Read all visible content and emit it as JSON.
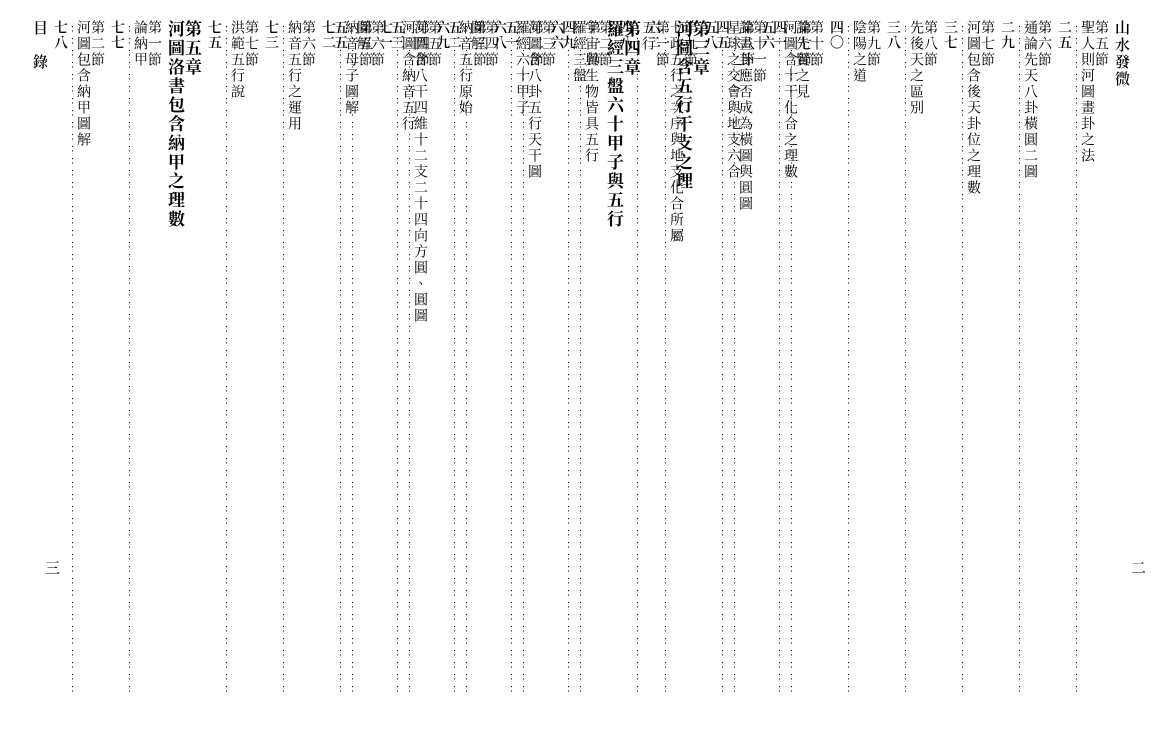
{
  "book_header_right": "山水發微",
  "book_header_left": "目　錄",
  "page_num_right": "二",
  "page_num_left": "三",
  "font": {
    "body_pt": 14,
    "chapter_pt": 17,
    "color": "#000000",
    "bg": "#ffffff"
  },
  "dot_glyph": "⋮",
  "right_page": [
    {
      "type": "header",
      "text": "山水發微"
    },
    {
      "type": "entry",
      "label": "第五節",
      "title": "聖人則河圖畫卦之法",
      "page": "二五"
    },
    {
      "type": "entry",
      "label": "第六節",
      "title": "通論先天八卦橫圓二圖",
      "page": "二九"
    },
    {
      "type": "entry",
      "label": "第七節",
      "title": "河圖包含後天卦位之理數",
      "page": "三七"
    },
    {
      "type": "entry",
      "label": "第八節",
      "title": "先後天之區別",
      "page": "三八"
    },
    {
      "type": "entry",
      "label": "第九節",
      "title": "陰陽之道",
      "page": "四〇"
    },
    {
      "type": "entry",
      "label": "第十節",
      "title": "論先賢之見",
      "page": "四一"
    },
    {
      "type": "entry",
      "label": "第十一節",
      "title": "論畫卦應否成為橫圖與圓圖",
      "page": "四五"
    },
    {
      "type": "chapter",
      "label": "第三章",
      "title": "河圖含五行干支之理"
    },
    {
      "type": "entry",
      "label": "第一節",
      "title": "五行",
      "page": "四八"
    },
    {
      "type": "entry",
      "label": "第二節",
      "title": "宇宙與生物皆具五行",
      "page": "四九"
    },
    {
      "type": "entry",
      "label": "第三節",
      "title": "河圖含八卦五行天干圖",
      "page": "五一"
    },
    {
      "type": "entry",
      "label": "第四節",
      "title": "圖解",
      "page": "五二"
    },
    {
      "type": "entry",
      "label": "第五節",
      "title": "河圖含八干四維十二支二十四向方圓、圓圖",
      "page": "五三"
    },
    {
      "type": "entry",
      "label": "第六節",
      "title": "圖解",
      "page": "五五"
    }
  ],
  "left_page": [
    {
      "type": "entry",
      "label": "第七節",
      "title": "河圖含十干化合之理數",
      "page": "五六"
    },
    {
      "type": "entry",
      "label": "第八節",
      "title": "星球之交會與地支六合",
      "page": "五八"
    },
    {
      "type": "entry",
      "label": "第九節",
      "title": "七政五行之次序與地支化合所屬",
      "page": "六二"
    },
    {
      "type": "chapter",
      "label": "第四章",
      "title": "羅經三盤六十甲子與五行"
    },
    {
      "type": "entry",
      "label": "第一節",
      "title": "羅經三盤",
      "page": "六六"
    },
    {
      "type": "entry",
      "label": "第二節",
      "title": "羅經六十甲子",
      "page": "六八"
    },
    {
      "type": "entry",
      "label": "第三節",
      "title": "納音五行原始",
      "page": "六九"
    },
    {
      "type": "entry",
      "label": "第四節",
      "title": "河圖含納音五行",
      "page": "七一"
    },
    {
      "type": "entry",
      "label": "第五節",
      "title": "納音母子圖解",
      "page": "七二"
    },
    {
      "type": "entry",
      "label": "第六節",
      "title": "納音五行之運用",
      "page": "七三"
    },
    {
      "type": "entry",
      "label": "第七節",
      "title": "洪範五行說",
      "page": "七五"
    },
    {
      "type": "chapter",
      "label": "第五章",
      "title": "河圖洛書包含納甲之理數"
    },
    {
      "type": "entry",
      "label": "第一節",
      "title": "論納甲",
      "page": "七七"
    },
    {
      "type": "entry",
      "label": "第二節",
      "title": "河圖包含納甲圖解",
      "page": "七八"
    },
    {
      "type": "header",
      "text": "目　錄"
    }
  ]
}
